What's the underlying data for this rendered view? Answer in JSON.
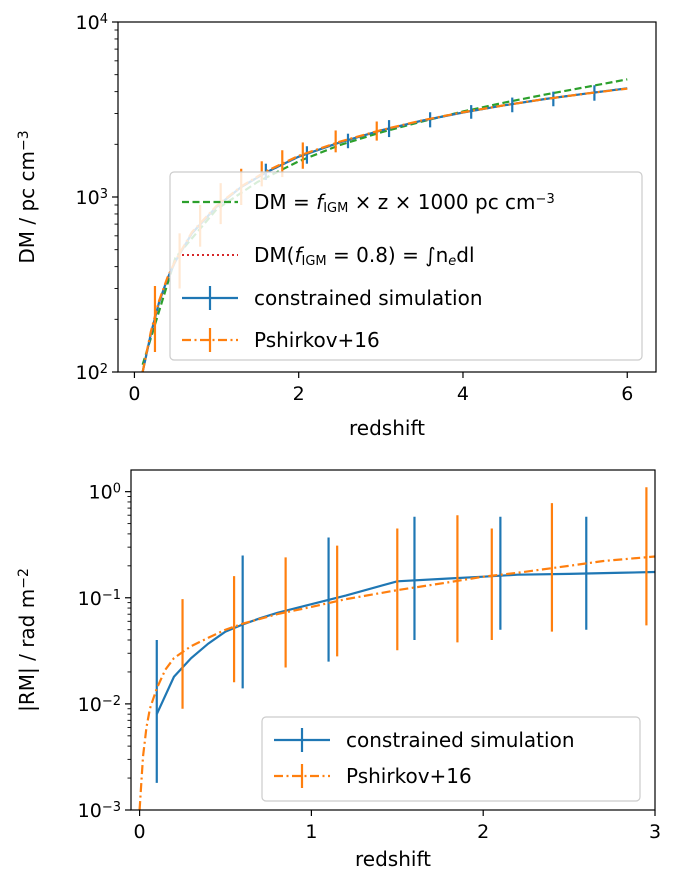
{
  "colors": {
    "sim": "#1f77b4",
    "pshirkov": "#ff7f0e",
    "linear": "#2ca02c",
    "integral": "#d62728"
  },
  "chart_data": [
    {
      "type": "line",
      "xlabel": "redshift",
      "ylabel": "DM / pc cm^-3",
      "xlim": [
        -0.2,
        6.35
      ],
      "ylim": [
        100,
        10000
      ],
      "yscale": "log",
      "xticks": [
        0,
        2,
        4,
        6
      ],
      "xtick_labels": [
        "0",
        "2",
        "4",
        "6"
      ],
      "yticks": [
        100,
        1000,
        10000
      ],
      "ytick_labels": [
        {
          "base": "10",
          "exp": "2"
        },
        {
          "base": "10",
          "exp": "3"
        },
        {
          "base": "10",
          "exp": "4"
        }
      ],
      "legend_position": "lower-right",
      "series": [
        {
          "name": "DM = f_IGM × z × 1000 pc cm^-3",
          "legend": {
            "pre": "DM = ",
            "f": "f",
            "sub": "IGM",
            "post": " × z × 1000 pc cm",
            "sup": "−3"
          },
          "style": "dashed",
          "color_key": "linear",
          "x": [
            0.1,
            0.5,
            1,
            1.5,
            2,
            2.5,
            3,
            3.5,
            4,
            4.5,
            5,
            5.5,
            6
          ],
          "y": [
            110,
            450,
            850,
            1220,
            1600,
            1980,
            2340,
            2700,
            3080,
            3460,
            3850,
            4250,
            4700
          ]
        },
        {
          "name": "DM(f_IGM = 0.8) = ∫ n_e dl",
          "legend": {
            "pre": "DM(",
            "f": "f",
            "sub": "IGM",
            "post": " = 0.8) = ∫n",
            "sub2": "e",
            "post2": "dl"
          },
          "style": "dotted",
          "color_key": "integral",
          "x": [
            0.1,
            0.2,
            0.3,
            0.4,
            0.5,
            0.7,
            1,
            1.3,
            1.6,
            2,
            2.5,
            3,
            3.5,
            4,
            4.5,
            5,
            5.5,
            6
          ],
          "y": [
            100,
            165,
            250,
            340,
            430,
            620,
            880,
            1140,
            1380,
            1700,
            2050,
            2400,
            2730,
            3040,
            3340,
            3630,
            3900,
            4180
          ]
        },
        {
          "name": "constrained simulation",
          "style": "solid",
          "color_key": "sim",
          "x": [
            0.1,
            0.2,
            0.3,
            0.4,
            0.5,
            0.7,
            1,
            1.3,
            1.6,
            2,
            2.5,
            3,
            3.5,
            4,
            4.5,
            5,
            5.5,
            6
          ],
          "y": [
            100,
            165,
            250,
            340,
            430,
            620,
            880,
            1140,
            1380,
            1700,
            2050,
            2400,
            2730,
            3040,
            3340,
            3630,
            3900,
            4180
          ],
          "errorbars": [
            {
              "x": 1.6,
              "lo": 1250,
              "hi": 1550
            },
            {
              "x": 2.1,
              "lo": 1550,
              "hi": 1950
            },
            {
              "x": 2.6,
              "lo": 1900,
              "hi": 2300
            },
            {
              "x": 3.1,
              "lo": 2200,
              "hi": 2750
            },
            {
              "x": 3.6,
              "lo": 2500,
              "hi": 3050
            },
            {
              "x": 4.1,
              "lo": 2800,
              "hi": 3350
            },
            {
              "x": 4.6,
              "lo": 3050,
              "hi": 3700
            },
            {
              "x": 5.1,
              "lo": 3300,
              "hi": 4000
            },
            {
              "x": 5.6,
              "lo": 3550,
              "hi": 4350
            }
          ]
        },
        {
          "name": "Pshirkov+16",
          "style": "dashdot",
          "color_key": "pshirkov",
          "x": [
            0.1,
            0.2,
            0.3,
            0.4,
            0.5,
            0.7,
            1,
            1.3,
            1.6,
            2,
            2.5,
            3,
            3.5,
            4,
            4.5,
            5,
            5.5,
            6
          ],
          "y": [
            100,
            170,
            255,
            345,
            435,
            630,
            890,
            1150,
            1400,
            1720,
            2070,
            2410,
            2740,
            3050,
            3340,
            3630,
            3900,
            4160
          ],
          "errorbars": [
            {
              "x": 0.25,
              "lo": 130,
              "hi": 310
            },
            {
              "x": 0.55,
              "lo": 300,
              "hi": 620
            },
            {
              "x": 0.8,
              "lo": 520,
              "hi": 900
            },
            {
              "x": 1.05,
              "lo": 700,
              "hi": 1200
            },
            {
              "x": 1.3,
              "lo": 900,
              "hi": 1450
            },
            {
              "x": 1.55,
              "lo": 1150,
              "hi": 1600
            },
            {
              "x": 1.8,
              "lo": 1300,
              "hi": 1850
            },
            {
              "x": 2.05,
              "lo": 1450,
              "hi": 2050
            },
            {
              "x": 2.45,
              "lo": 1800,
              "hi": 2400
            },
            {
              "x": 2.95,
              "lo": 2100,
              "hi": 2700
            }
          ]
        }
      ]
    },
    {
      "type": "line",
      "xlabel": "redshift",
      "ylabel": "|RM| / rad m^-2",
      "xlim": [
        -0.05,
        3.0
      ],
      "ylim": [
        0.001,
        1.6
      ],
      "yscale": "log",
      "xticks": [
        0,
        1,
        2,
        3
      ],
      "xtick_labels": [
        "0",
        "1",
        "2",
        "3"
      ],
      "yticks": [
        0.001,
        0.01,
        0.1,
        1
      ],
      "ytick_labels": [
        {
          "base": "10",
          "exp": "−3"
        },
        {
          "base": "10",
          "exp": "−2"
        },
        {
          "base": "10",
          "exp": "−1"
        },
        {
          "base": "10",
          "exp": "0"
        }
      ],
      "legend_position": "lower-right",
      "series": [
        {
          "name": "constrained simulation",
          "style": "solid",
          "color_key": "sim",
          "x": [
            0.1,
            0.2,
            0.3,
            0.4,
            0.5,
            0.6,
            0.7,
            0.8,
            1.0,
            1.2,
            1.5,
            1.8,
            2.0,
            2.2,
            2.5,
            2.8,
            3.0
          ],
          "y": [
            0.008,
            0.018,
            0.027,
            0.037,
            0.048,
            0.056,
            0.064,
            0.072,
            0.087,
            0.105,
            0.143,
            0.152,
            0.158,
            0.165,
            0.168,
            0.172,
            0.175
          ],
          "errorbars": [
            {
              "x": 0.1,
              "lo": 0.0018,
              "hi": 0.04
            },
            {
              "x": 0.6,
              "lo": 0.014,
              "hi": 0.25
            },
            {
              "x": 1.1,
              "lo": 0.025,
              "hi": 0.37
            },
            {
              "x": 1.6,
              "lo": 0.04,
              "hi": 0.58
            },
            {
              "x": 2.1,
              "lo": 0.05,
              "hi": 0.58
            },
            {
              "x": 2.6,
              "lo": 0.05,
              "hi": 0.58
            }
          ]
        },
        {
          "name": "Pshirkov+16",
          "style": "dashdot",
          "color_key": "pshirkov",
          "x": [
            0.0,
            0.01,
            0.02,
            0.04,
            0.06,
            0.1,
            0.15,
            0.2,
            0.3,
            0.4,
            0.5,
            0.6,
            0.8,
            1.0,
            1.2,
            1.5,
            1.8,
            2.0,
            2.2,
            2.5,
            2.7,
            3.0
          ],
          "y": [
            0.001,
            0.0018,
            0.0032,
            0.006,
            0.009,
            0.014,
            0.021,
            0.027,
            0.035,
            0.042,
            0.05,
            0.057,
            0.07,
            0.082,
            0.097,
            0.118,
            0.14,
            0.158,
            0.172,
            0.2,
            0.222,
            0.245
          ],
          "errorbars": [
            {
              "x": 0.25,
              "lo": 0.009,
              "hi": 0.097
            },
            {
              "x": 0.55,
              "lo": 0.016,
              "hi": 0.16
            },
            {
              "x": 0.85,
              "lo": 0.022,
              "hi": 0.24
            },
            {
              "x": 1.15,
              "lo": 0.028,
              "hi": 0.31
            },
            {
              "x": 1.5,
              "lo": 0.032,
              "hi": 0.45
            },
            {
              "x": 1.85,
              "lo": 0.038,
              "hi": 0.6
            },
            {
              "x": 2.05,
              "lo": 0.04,
              "hi": 0.45
            },
            {
              "x": 2.4,
              "lo": 0.048,
              "hi": 0.78
            },
            {
              "x": 2.95,
              "lo": 0.055,
              "hi": 1.1
            }
          ]
        }
      ]
    }
  ]
}
